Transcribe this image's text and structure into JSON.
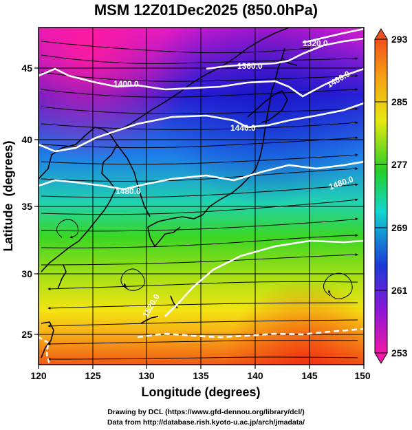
{
  "title": "MSM 12Z01Dec2025 (850.0hPa)",
  "x_axis": {
    "label": "Longitude (degrees)",
    "ticks": [
      "120",
      "125",
      "130",
      "135",
      "140",
      "145",
      "150"
    ]
  },
  "y_axis": {
    "label": "Latitude  (degrees)",
    "ticks": [
      "25",
      "30",
      "35",
      "40",
      "45"
    ]
  },
  "colorbar": {
    "ticks": [
      "293",
      "285",
      "277",
      "269",
      "261",
      "253"
    ]
  },
  "contours": [
    {
      "label": "1320.0"
    },
    {
      "label": "1360.0"
    },
    {
      "label": "1400.0"
    },
    {
      "label": "1400.0"
    },
    {
      "label": "1440.0"
    },
    {
      "label": "1480.0"
    },
    {
      "label": "1480.0"
    },
    {
      "label": "1520.0"
    }
  ],
  "footer": {
    "line1": "Drawing by DCL (https://www.gfd-dennou.org/library/dcl/)",
    "line2": "Data from http://database.rish.kyoto-u.ac.jp/arch/jmadata/"
  },
  "colors": {
    "magenta": "#ee1aa6",
    "purple": "#8a12d6",
    "blue": "#1a33d9",
    "cyan": "#12ced8",
    "green": "#22cf22",
    "yellow": "#f0ee10",
    "orange": "#f99d14",
    "red": "#f13a14"
  }
}
